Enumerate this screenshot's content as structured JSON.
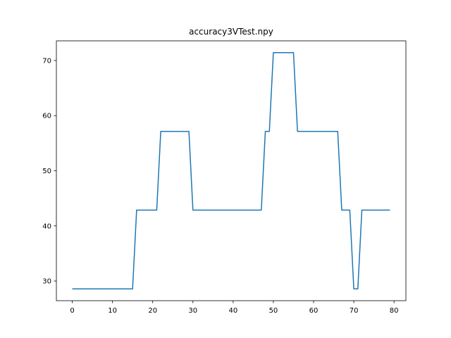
{
  "chart_data": {
    "type": "line",
    "title": "accuracy3VTest.npy",
    "xlabel": "",
    "ylabel": "",
    "xlim": [
      -3.95,
      82.95
    ],
    "ylim": [
      26.43,
      73.57
    ],
    "xticks": [
      0,
      10,
      20,
      30,
      40,
      50,
      60,
      70,
      80
    ],
    "yticks": [
      30,
      40,
      50,
      60,
      70
    ],
    "grid": false,
    "legend": "none",
    "series": [
      {
        "color": "#1f77b4",
        "x": [
          0,
          1,
          2,
          3,
          4,
          5,
          6,
          7,
          8,
          9,
          10,
          11,
          12,
          13,
          14,
          15,
          16,
          17,
          18,
          19,
          20,
          21,
          22,
          23,
          24,
          25,
          26,
          27,
          28,
          29,
          30,
          31,
          32,
          33,
          34,
          35,
          36,
          37,
          38,
          39,
          40,
          41,
          42,
          43,
          44,
          45,
          46,
          47,
          48,
          49,
          50,
          51,
          52,
          53,
          54,
          55,
          56,
          57,
          58,
          59,
          60,
          61,
          62,
          63,
          64,
          65,
          66,
          67,
          68,
          69,
          70,
          71,
          72,
          73,
          74,
          75,
          76,
          77,
          78,
          79
        ],
        "values": [
          28.57,
          28.57,
          28.57,
          28.57,
          28.57,
          28.57,
          28.57,
          28.57,
          28.57,
          28.57,
          28.57,
          28.57,
          28.57,
          28.57,
          28.57,
          28.57,
          42.86,
          42.86,
          42.86,
          42.86,
          42.86,
          42.86,
          57.14,
          57.14,
          57.14,
          57.14,
          57.14,
          57.14,
          57.14,
          57.14,
          42.86,
          42.86,
          42.86,
          42.86,
          42.86,
          42.86,
          42.86,
          42.86,
          42.86,
          42.86,
          42.86,
          42.86,
          42.86,
          42.86,
          42.86,
          42.86,
          42.86,
          42.86,
          57.14,
          57.14,
          71.43,
          71.43,
          71.43,
          71.43,
          71.43,
          71.43,
          57.14,
          57.14,
          57.14,
          57.14,
          57.14,
          57.14,
          57.14,
          57.14,
          57.14,
          57.14,
          57.14,
          42.86,
          42.86,
          42.86,
          28.57,
          28.57,
          42.86,
          42.86,
          42.86,
          42.86,
          42.86,
          42.86,
          42.86,
          42.86
        ]
      }
    ]
  }
}
